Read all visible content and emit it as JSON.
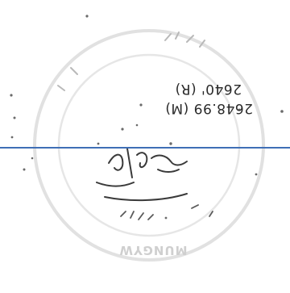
{
  "document": {
    "elevation_line_1": "2648.99 (M)",
    "elevation_line_2": "2640' (R)",
    "stamp_name": "MUNGYW",
    "colors": {
      "rule_line": "#3f6fb6",
      "ink": "#2a2a2a",
      "stamp_ink": "#cfcfcf"
    }
  }
}
